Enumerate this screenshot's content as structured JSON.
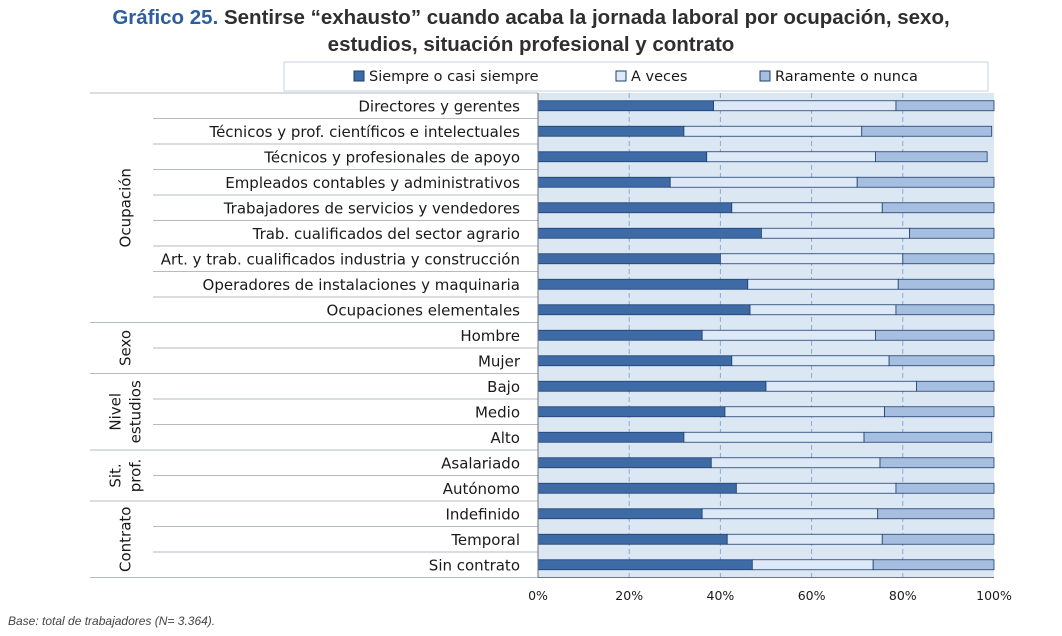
{
  "title": {
    "prefix": "Gráfico 25.",
    "line1": "Sentirse “exhausto” cuando acaba la jornada laboral por ocupación, sexo,",
    "line2": "estudios, situación profesional y contrato"
  },
  "footnote": "Base: total de trabajadores (N= 3.364).",
  "colors": {
    "series0": "#3e6aa5",
    "series1": "#dde9f7",
    "series2": "#a6bedf",
    "plot_bg": "#dce7f4",
    "grid": "#8aa9d4"
  },
  "chart_data": {
    "type": "bar",
    "orientation": "horizontal",
    "stacked": true,
    "percent": true,
    "legend_position": "top",
    "xlim": [
      0,
      100
    ],
    "x_ticks": [
      "0%",
      "20%",
      "40%",
      "60%",
      "80%",
      "100%"
    ],
    "grid": true,
    "series": [
      {
        "name": "Siempre o casi siempre",
        "values": [
          38.5,
          32,
          37,
          29,
          42.5,
          49,
          40,
          46,
          46.5,
          36,
          42.5,
          50,
          41,
          32,
          38,
          43.5,
          36,
          41.5,
          47
        ]
      },
      {
        "name": "A veces",
        "values": [
          40,
          39,
          37,
          41,
          33,
          32.5,
          40,
          33,
          32,
          38,
          34.5,
          33,
          35,
          39.5,
          37,
          35,
          38.5,
          34,
          26.5
        ]
      },
      {
        "name": "Raramente o nunca",
        "values": [
          21.5,
          28.5,
          24.5,
          30,
          24.5,
          18.5,
          20,
          21,
          21.5,
          26,
          23,
          17,
          24,
          28,
          25,
          21.5,
          25.5,
          24.5,
          26.5
        ]
      }
    ],
    "categories": [
      "Directores y gerentes",
      "Técnicos y prof. científicos e intelectuales",
      "Técnicos y profesionales de apoyo",
      "Empleados contables y administrativos",
      "Trabajadores de servicios y vendedores",
      "Trab. cualificados del sector agrario",
      "Art. y trab. cualificados industria y construcción",
      "Operadores de instalaciones y maquinaria",
      "Ocupaciones elementales",
      "Hombre",
      "Mujer",
      "Bajo",
      "Medio",
      "Alto",
      "Asalariado",
      "Autónomo",
      "Indefinido",
      "Temporal",
      "Sin contrato"
    ],
    "groups": [
      {
        "label_lines": [
          "Ocupación"
        ],
        "start": 0,
        "end": 8
      },
      {
        "label_lines": [
          "Sexo"
        ],
        "start": 9,
        "end": 10
      },
      {
        "label_lines": [
          "Nivel",
          "estudios"
        ],
        "start": 11,
        "end": 13
      },
      {
        "label_lines": [
          "Sit.",
          "prof."
        ],
        "start": 14,
        "end": 15
      },
      {
        "label_lines": [
          "Contrato"
        ],
        "start": 16,
        "end": 18
      }
    ]
  }
}
